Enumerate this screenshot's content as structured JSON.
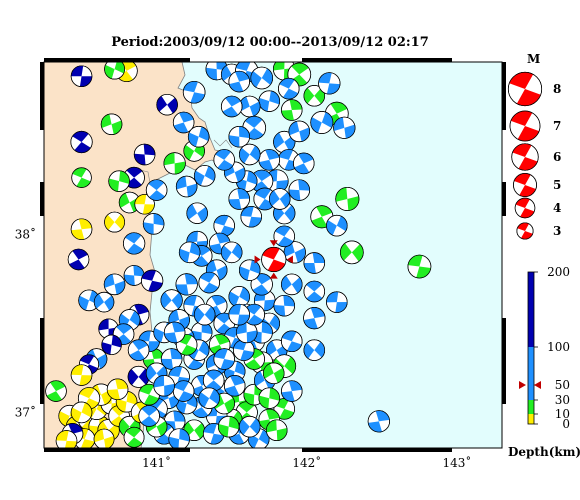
{
  "title": "Period:2003/09/12 00:00--2013/09/12 02:17",
  "map": {
    "lon_range": [
      140.25,
      143.3
    ],
    "lat_range": [
      36.8,
      38.97
    ],
    "lon_ticks": [
      {
        "value": 141,
        "label": "141˚"
      },
      {
        "value": 142,
        "label": "142˚"
      },
      {
        "value": 143,
        "label": "143˚"
      }
    ],
    "lat_ticks": [
      {
        "value": 38,
        "label": "38˚"
      },
      {
        "value": 37,
        "label": "37˚"
      }
    ],
    "colors": {
      "land": "#fbe3c8",
      "sea": "#e2fdfd",
      "coast": "#808080"
    },
    "latest_event": {
      "lon": 141.78,
      "lat": 37.86,
      "mag": 5.0,
      "color": "#ff0000"
    }
  },
  "magnitude_legend": {
    "title": "M",
    "items": [
      {
        "mag": 8,
        "label": "8"
      },
      {
        "mag": 7,
        "label": "7"
      },
      {
        "mag": 6,
        "label": "6"
      },
      {
        "mag": 5,
        "label": "5"
      },
      {
        "mag": 4,
        "label": "4"
      },
      {
        "mag": 3,
        "label": "3"
      }
    ]
  },
  "depth_scale": {
    "label": "Depth(km)",
    "ticks": [
      {
        "value": 200,
        "label": "200"
      },
      {
        "value": 100,
        "label": "100"
      },
      {
        "value": 50,
        "label": "50"
      },
      {
        "value": 30,
        "label": "30"
      },
      {
        "value": 10,
        "label": "10"
      },
      {
        "value": 0,
        "label": "0"
      }
    ],
    "bands": [
      {
        "from": 0,
        "to": 10,
        "color": "#ffee00"
      },
      {
        "from": 10,
        "to": 30,
        "color": "#22ee22"
      },
      {
        "from": 30,
        "to": 100,
        "color": "#1e90ff"
      },
      {
        "from": 100,
        "to": 200,
        "color": "#0000b0"
      }
    ],
    "latest_event_depth": 50
  },
  "events": [
    [
      140.5,
      38.89,
      4.0,
      "#0000b0"
    ],
    [
      140.8,
      38.92,
      4.2,
      "#ffee00"
    ],
    [
      140.72,
      38.93,
      3.8,
      "#22ee22"
    ],
    [
      140.7,
      38.62,
      4.0,
      "#22ee22"
    ],
    [
      140.5,
      38.52,
      4.2,
      "#0000b0"
    ],
    [
      140.92,
      38.45,
      4.0,
      "#0000b0"
    ],
    [
      141.07,
      38.73,
      4.0,
      "#0000b0"
    ],
    [
      141.25,
      38.8,
      4.3,
      "#1e90ff"
    ],
    [
      141.18,
      38.63,
      4.0,
      "#1e90ff"
    ],
    [
      141.25,
      38.47,
      4.0,
      "#22ee22"
    ],
    [
      141.12,
      38.4,
      4.2,
      "#22ee22"
    ],
    [
      140.85,
      38.32,
      4.0,
      "#0000b0"
    ],
    [
      140.75,
      38.3,
      4.0,
      "#22ee22"
    ],
    [
      140.82,
      38.18,
      4.0,
      "#22ee22"
    ],
    [
      140.5,
      38.32,
      3.7,
      "#22ee22"
    ],
    [
      140.5,
      38.03,
      4.0,
      "#ffee00"
    ],
    [
      140.72,
      38.07,
      3.8,
      "#ffee00"
    ],
    [
      140.92,
      38.17,
      3.7,
      "#ffee00"
    ],
    [
      140.48,
      37.86,
      4.0,
      "#0000b0"
    ],
    [
      140.55,
      37.63,
      4.0,
      "#1e90ff"
    ],
    [
      140.72,
      37.72,
      4.0,
      "#1e90ff"
    ],
    [
      140.85,
      37.95,
      4.2,
      "#1e90ff"
    ],
    [
      140.85,
      37.77,
      3.8,
      "#1e90ff"
    ],
    [
      140.65,
      37.62,
      3.7,
      "#1e90ff"
    ],
    [
      140.97,
      37.74,
      4.2,
      "#0000b0"
    ],
    [
      140.88,
      37.55,
      4.0,
      "#0000b0"
    ],
    [
      140.82,
      37.52,
      4.0,
      "#1e90ff"
    ],
    [
      140.68,
      37.47,
      3.7,
      "#0000b0"
    ],
    [
      140.78,
      37.44,
      4.0,
      "#1e90ff"
    ],
    [
      140.7,
      37.38,
      3.7,
      "#0000b0"
    ],
    [
      140.6,
      37.3,
      4.0,
      "#1e90ff"
    ],
    [
      140.55,
      37.27,
      3.6,
      "#0000b0"
    ],
    [
      140.98,
      37.3,
      4.0,
      "#22ee22"
    ],
    [
      140.88,
      37.2,
      4.1,
      "#0000b0"
    ],
    [
      140.5,
      37.21,
      4.0,
      "#ffee00"
    ],
    [
      140.33,
      37.12,
      4.0,
      "#22ee22"
    ],
    [
      140.42,
      36.98,
      4.2,
      "#ffee00"
    ],
    [
      140.47,
      36.92,
      4.2,
      "#ffee00"
    ],
    [
      140.55,
      36.96,
      4.2,
      "#ffee00"
    ],
    [
      140.62,
      36.92,
      4.2,
      "#ffee00"
    ],
    [
      140.68,
      36.9,
      4.2,
      "#ffee00"
    ],
    [
      140.52,
      36.85,
      4.0,
      "#ffee00"
    ],
    [
      140.44,
      36.88,
      4.0,
      "#0000b0"
    ],
    [
      140.6,
      37.02,
      4.2,
      "#ffee00"
    ],
    [
      140.7,
      37.05,
      4.2,
      "#ffee00"
    ],
    [
      140.75,
      36.98,
      4.0,
      "#ffee00"
    ],
    [
      140.8,
      37.06,
      4.0,
      "#ffee00"
    ],
    [
      140.63,
      37.1,
      4.2,
      "#ffee00"
    ],
    [
      140.55,
      37.08,
      4.2,
      "#ffee00"
    ],
    [
      140.74,
      37.13,
      4.0,
      "#ffee00"
    ],
    [
      140.82,
      36.92,
      4.0,
      "#22ee22"
    ],
    [
      140.4,
      36.84,
      4.0,
      "#ffee00"
    ],
    [
      140.9,
      37.0,
      4.0,
      "#ffee00"
    ],
    [
      140.5,
      37.0,
      4.0,
      "#ffee00"
    ],
    [
      140.65,
      36.85,
      3.8,
      "#ffee00"
    ],
    [
      140.85,
      36.86,
      3.8,
      "#22ee22"
    ],
    [
      141.4,
      38.93,
      4.2,
      "#1e90ff"
    ],
    [
      141.5,
      38.9,
      4.0,
      "#1e90ff"
    ],
    [
      141.6,
      38.92,
      4.5,
      "#1e90ff"
    ],
    [
      141.55,
      38.86,
      4.0,
      "#1e90ff"
    ],
    [
      141.7,
      38.88,
      4.3,
      "#1e90ff"
    ],
    [
      141.85,
      38.93,
      4.3,
      "#22ee22"
    ],
    [
      141.95,
      38.9,
      4.6,
      "#22ee22"
    ],
    [
      141.75,
      38.75,
      4.0,
      "#1e90ff"
    ],
    [
      141.62,
      38.72,
      4.0,
      "#1e90ff"
    ],
    [
      141.88,
      38.82,
      4.0,
      "#1e90ff"
    ],
    [
      141.9,
      38.7,
      4.0,
      "#22ee22"
    ],
    [
      142.05,
      38.78,
      4.0,
      "#22ee22"
    ],
    [
      142.15,
      38.85,
      4.2,
      "#1e90ff"
    ],
    [
      142.2,
      38.68,
      4.6,
      "#22ee22"
    ],
    [
      142.1,
      38.63,
      4.4,
      "#1e90ff"
    ],
    [
      142.25,
      38.6,
      4.2,
      "#1e90ff"
    ],
    [
      141.65,
      38.6,
      4.6,
      "#1e90ff"
    ],
    [
      141.55,
      38.55,
      4.0,
      "#1e90ff"
    ],
    [
      141.85,
      38.52,
      4.2,
      "#1e90ff"
    ],
    [
      141.88,
      38.42,
      4.0,
      "#1e90ff"
    ],
    [
      141.75,
      38.42,
      4.0,
      "#1e90ff"
    ],
    [
      141.62,
      38.45,
      4.0,
      "#1e90ff"
    ],
    [
      141.8,
      38.3,
      4.6,
      "#1e90ff"
    ],
    [
      141.7,
      38.3,
      4.4,
      "#1e90ff"
    ],
    [
      141.6,
      38.3,
      4.0,
      "#1e90ff"
    ],
    [
      141.52,
      38.35,
      4.0,
      "#1e90ff"
    ],
    [
      141.72,
      38.2,
      4.3,
      "#1e90ff"
    ],
    [
      141.55,
      38.2,
      4.0,
      "#1e90ff"
    ],
    [
      141.85,
      38.12,
      4.2,
      "#1e90ff"
    ],
    [
      141.63,
      38.1,
      4.0,
      "#1e90ff"
    ],
    [
      141.98,
      38.4,
      4.0,
      "#1e90ff"
    ],
    [
      141.32,
      38.33,
      4.0,
      "#1e90ff"
    ],
    [
      141.2,
      38.27,
      4.0,
      "#1e90ff"
    ],
    [
      141.0,
      38.25,
      4.0,
      "#1e90ff"
    ],
    [
      140.98,
      38.06,
      4.0,
      "#1e90ff"
    ],
    [
      141.27,
      38.12,
      4.0,
      "#1e90ff"
    ],
    [
      141.45,
      38.05,
      4.0,
      "#1e90ff"
    ],
    [
      141.42,
      37.95,
      4.0,
      "#1e90ff"
    ],
    [
      141.5,
      37.9,
      4.0,
      "#1e90ff"
    ],
    [
      141.27,
      37.96,
      4.0,
      "#1e90ff"
    ],
    [
      141.3,
      37.88,
      4.0,
      "#1e90ff"
    ],
    [
      141.22,
      37.9,
      4.0,
      "#1e90ff"
    ],
    [
      141.4,
      37.8,
      4.0,
      "#1e90ff"
    ],
    [
      141.35,
      37.73,
      4.0,
      "#1e90ff"
    ],
    [
      141.2,
      37.72,
      4.2,
      "#1e90ff"
    ],
    [
      141.1,
      37.63,
      4.2,
      "#1e90ff"
    ],
    [
      141.25,
      37.6,
      4.0,
      "#1e90ff"
    ],
    [
      141.4,
      37.6,
      4.0,
      "#1e90ff"
    ],
    [
      141.55,
      37.65,
      4.0,
      "#1e90ff"
    ],
    [
      141.6,
      37.55,
      4.0,
      "#1e90ff"
    ],
    [
      141.45,
      37.5,
      4.0,
      "#1e90ff"
    ],
    [
      141.3,
      37.45,
      4.0,
      "#1e90ff"
    ],
    [
      141.18,
      37.42,
      4.0,
      "#1e90ff"
    ],
    [
      141.52,
      37.42,
      4.0,
      "#1e90ff"
    ],
    [
      141.65,
      37.4,
      4.0,
      "#1e90ff"
    ],
    [
      141.75,
      37.5,
      4.0,
      "#1e90ff"
    ],
    [
      141.72,
      37.63,
      4.0,
      "#1e90ff"
    ],
    [
      141.7,
      37.72,
      4.2,
      "#1e90ff"
    ],
    [
      141.62,
      37.8,
      4.0,
      "#1e90ff"
    ],
    [
      141.92,
      37.9,
      4.2,
      "#1e90ff"
    ],
    [
      141.85,
      37.99,
      4.0,
      "#1e90ff"
    ],
    [
      142.05,
      37.84,
      4.0,
      "#1e90ff"
    ],
    [
      142.3,
      37.9,
      4.6,
      "#22ee22"
    ],
    [
      142.75,
      37.82,
      4.6,
      "#22ee22"
    ],
    [
      142.1,
      38.1,
      4.4,
      "#22ee22"
    ],
    [
      142.2,
      38.05,
      4.0,
      "#1e90ff"
    ],
    [
      142.27,
      38.2,
      4.7,
      "#22ee22"
    ],
    [
      142.05,
      37.68,
      4.0,
      "#1e90ff"
    ],
    [
      141.7,
      37.45,
      4.2,
      "#1e90ff"
    ],
    [
      141.8,
      37.35,
      4.0,
      "#1e90ff"
    ],
    [
      141.9,
      37.4,
      4.0,
      "#1e90ff"
    ],
    [
      142.05,
      37.53,
      4.2,
      "#1e90ff"
    ],
    [
      141.85,
      37.26,
      4.6,
      "#22ee22"
    ],
    [
      141.7,
      37.28,
      4.3,
      "#22ee22"
    ],
    [
      141.65,
      37.3,
      4.0,
      "#22ee22"
    ],
    [
      141.52,
      37.23,
      4.0,
      "#1e90ff"
    ],
    [
      141.4,
      37.27,
      4.0,
      "#1e90ff"
    ],
    [
      141.25,
      37.3,
      4.0,
      "#1e90ff"
    ],
    [
      141.1,
      37.3,
      4.0,
      "#1e90ff"
    ],
    [
      141.0,
      37.22,
      4.0,
      "#1e90ff"
    ],
    [
      141.15,
      37.2,
      4.0,
      "#1e90ff"
    ],
    [
      141.3,
      37.15,
      4.0,
      "#1e90ff"
    ],
    [
      141.45,
      37.12,
      4.0,
      "#1e90ff"
    ],
    [
      141.55,
      37.06,
      4.0,
      "#22ee22"
    ],
    [
      141.6,
      37.0,
      4.2,
      "#22ee22"
    ],
    [
      141.65,
      37.1,
      4.0,
      "#22ee22"
    ],
    [
      141.72,
      37.18,
      4.0,
      "#1e90ff"
    ],
    [
      141.85,
      37.02,
      4.0,
      "#22ee22"
    ],
    [
      141.75,
      36.96,
      4.0,
      "#22ee22"
    ],
    [
      141.5,
      36.96,
      4.0,
      "#22ee22"
    ],
    [
      141.4,
      36.98,
      4.0,
      "#1e90ff"
    ],
    [
      141.3,
      37.03,
      4.0,
      "#1e90ff"
    ],
    [
      141.2,
      37.05,
      4.0,
      "#1e90ff"
    ],
    [
      141.08,
      37.08,
      4.0,
      "#1e90ff"
    ],
    [
      141.0,
      37.02,
      4.2,
      "#1e90ff"
    ],
    [
      141.12,
      36.95,
      4.0,
      "#1e90ff"
    ],
    [
      141.25,
      36.9,
      4.0,
      "#22ee22"
    ],
    [
      141.38,
      36.88,
      4.0,
      "#1e90ff"
    ],
    [
      141.55,
      36.88,
      4.0,
      "#1e90ff"
    ],
    [
      141.68,
      36.85,
      4.0,
      "#1e90ff"
    ],
    [
      141.8,
      36.9,
      4.0,
      "#22ee22"
    ],
    [
      141.05,
      36.88,
      4.0,
      "#1e90ff"
    ],
    [
      141.15,
      36.85,
      4.0,
      "#1e90ff"
    ],
    [
      141.0,
      36.92,
      4.0,
      "#22ee22"
    ],
    [
      140.95,
      37.1,
      4.0,
      "#22ee22"
    ],
    [
      142.48,
      36.95,
      4.2,
      "#1e90ff"
    ],
    [
      142.05,
      37.35,
      4.0,
      "#1e90ff"
    ],
    [
      142.2,
      37.62,
      4.0,
      "#1e90ff"
    ],
    [
      141.5,
      38.72,
      4.0,
      "#1e90ff"
    ],
    [
      141.28,
      38.55,
      4.0,
      "#1e90ff"
    ],
    [
      141.95,
      38.58,
      4.0,
      "#1e90ff"
    ],
    [
      141.45,
      38.42,
      4.0,
      "#1e90ff"
    ],
    [
      141.95,
      38.25,
      4.0,
      "#1e90ff"
    ],
    [
      141.82,
      38.2,
      4.0,
      "#1e90ff"
    ],
    [
      141.58,
      37.35,
      4.0,
      "#1e90ff"
    ],
    [
      141.42,
      37.38,
      4.0,
      "#22ee22"
    ],
    [
      141.28,
      37.35,
      4.0,
      "#1e90ff"
    ],
    [
      141.6,
      37.45,
      4.0,
      "#1e90ff"
    ],
    [
      141.38,
      37.18,
      4.0,
      "#1e90ff"
    ],
    [
      141.75,
      37.08,
      4.0,
      "#22ee22"
    ],
    [
      141.45,
      37.05,
      4.0,
      "#22ee22"
    ],
    [
      141.18,
      37.12,
      4.0,
      "#1e90ff"
    ],
    [
      141.9,
      37.12,
      4.0,
      "#1e90ff"
    ],
    [
      141.62,
      36.92,
      4.0,
      "#1e90ff"
    ],
    [
      140.95,
      37.4,
      4.0,
      "#1e90ff"
    ],
    [
      140.88,
      37.35,
      4.0,
      "#1e90ff"
    ],
    [
      141.05,
      37.45,
      4.0,
      "#1e90ff"
    ],
    [
      141.15,
      37.52,
      4.0,
      "#1e90ff"
    ],
    [
      141.65,
      37.55,
      4.0,
      "#1e90ff"
    ],
    [
      141.85,
      37.6,
      4.0,
      "#1e90ff"
    ],
    [
      141.9,
      37.72,
      4.0,
      "#1e90ff"
    ],
    [
      141.45,
      37.3,
      4.0,
      "#1e90ff"
    ],
    [
      141.52,
      37.15,
      4.0,
      "#1e90ff"
    ],
    [
      141.35,
      37.08,
      4.0,
      "#1e90ff"
    ],
    [
      141.05,
      37.15,
      4.0,
      "#1e90ff"
    ],
    [
      140.95,
      36.98,
      4.0,
      "#1e90ff"
    ],
    [
      141.48,
      36.92,
      4.0,
      "#22ee22"
    ],
    [
      141.78,
      37.22,
      4.0,
      "#22ee22"
    ],
    [
      141.2,
      37.38,
      4.0,
      "#22ee22"
    ],
    [
      141.12,
      37.45,
      4.0,
      "#1e90ff"
    ],
    [
      141.32,
      37.55,
      4.0,
      "#1e90ff"
    ],
    [
      141.55,
      37.55,
      4.0,
      "#1e90ff"
    ]
  ]
}
